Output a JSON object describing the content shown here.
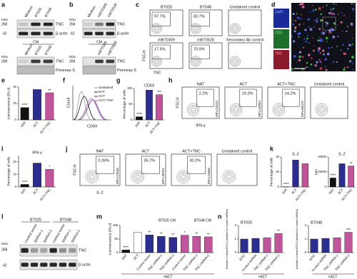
{
  "figure": {
    "panel_labels": [
      "a",
      "b",
      "c",
      "d",
      "e",
      "f",
      "g",
      "h",
      "i",
      "j",
      "k",
      "l",
      "m",
      "n"
    ],
    "a": {
      "lanes": [
        "Medium",
        "BT025",
        "BT048"
      ],
      "kda": "KDa",
      "markers": [
        "268",
        "42"
      ],
      "bands": [
        "TNC",
        "β-actin"
      ],
      "cm": "CM",
      "cm_lanes": [
        "Medium",
        "BT025",
        "BT048"
      ],
      "cm_kda": "KDa",
      "cm_marker": "268",
      "cm_bands": [
        "TNC",
        "Ponceau S"
      ]
    },
    "b": {
      "lanes": [
        "Medium",
        "mBT0309",
        "mBT0528"
      ],
      "kda": "KDa",
      "markers": [
        "268",
        "42"
      ],
      "bands": [
        "TNC",
        "β-actin"
      ],
      "cm": "CM",
      "cm_lanes": [
        "mBT0309",
        "mBT0528"
      ],
      "cm_kda": "KDa",
      "cm_marker": "268",
      "cm_bands": [
        "TNC",
        "Ponceau S"
      ]
    },
    "c": {
      "ylabel": "FSC-H",
      "xlabel": "TNC",
      "plots": [
        {
          "title": "BT025",
          "pct": "97.7%"
        },
        {
          "title": "BT048",
          "pct": "83.7%"
        },
        {
          "title": "Unstained control"
        },
        {
          "title": "mBT0309",
          "pct": "17.5%"
        },
        {
          "title": "mBT0528",
          "pct": "70.9%"
        },
        {
          "title": "Secondary Ab control"
        }
      ]
    },
    "d": {
      "channels": [
        "DAPI",
        "CD3",
        "TNC"
      ]
    },
    "f": {
      "ylabel": "Count",
      "xlabel": "CD69",
      "legend": [
        "Unstained",
        "NAT",
        "ACT",
        "ACT+TNC"
      ]
    },
    "h": {
      "ylabel": "FSC-H",
      "xlabel": "IFN-γ",
      "plots": [
        {
          "title": "NAT",
          "pct": "2.2%",
          "mfi": "MFI=12524"
        },
        {
          "title": "ACT",
          "pct": "19.2%",
          "mfi": "MFI=42853"
        },
        {
          "title": "ACT+TNC",
          "pct": "14.2%",
          "mfi": "MFI=85472"
        },
        {
          "title": "Unstained control"
        }
      ]
    },
    "j": {
      "ylabel": "FSC-H",
      "xlabel": "IL-2",
      "plots": [
        {
          "title": "NAT",
          "pct": "0.26%",
          "mfi": "MFI=13548"
        },
        {
          "title": "ACT",
          "pct": "35.7%",
          "mfi": "MFI=30761"
        },
        {
          "title": "ACT+TNC",
          "pct": "30.2%",
          "mfi": "MFI=24866"
        },
        {
          "title": "Unstained control"
        }
      ]
    },
    "l": {
      "groups": [
        "BT025",
        "BT048"
      ],
      "lanes": [
        "Control vector",
        "ShRNA-1",
        "ShRNA-2",
        "Control vector",
        "ShRNA-1",
        "ShRNA-2"
      ],
      "kda": "KDa",
      "markers": [
        "268",
        "42"
      ],
      "bands": [
        "TNC",
        "β-actin"
      ]
    },
    "m": {
      "groups": [
        "BT025 CM",
        "BT048 CM"
      ],
      "footer": "+ACT"
    },
    "n": {
      "footer": "+ACT"
    }
  },
  "chart_data": [
    {
      "type": "bar",
      "ylabel": "Luminescence (RLU)",
      "categories": [
        "NAT",
        "ACT",
        "ACT+TNC"
      ],
      "values": [
        15,
        37,
        33
      ],
      "colors": [
        "#111111",
        "#2b2d8f",
        "#c0559b"
      ],
      "annotations": [
        "****",
        null,
        "**"
      ],
      "ylim": [
        0,
        40
      ],
      "yticks": [
        0,
        20,
        40
      ]
    },
    {
      "type": "bar",
      "title": "CD69",
      "ylabel": "Percentage of cells",
      "categories": [
        "NAT",
        "ACT",
        "ACT+TNC"
      ],
      "values": [
        10,
        95,
        80
      ],
      "colors": [
        "#111111",
        "#2b2d8f",
        "#c0559b"
      ],
      "annotations": [
        "****",
        null,
        "***"
      ],
      "ylim": [
        0,
        100
      ],
      "yticks": [
        0,
        50,
        100
      ]
    },
    {
      "type": "bar",
      "title": "IFN-γ",
      "ylabel": "Percentage of cells",
      "categories": [
        "NAT",
        "ACT",
        "ACT+TNC"
      ],
      "values": [
        2,
        19,
        14
      ],
      "colors": [
        "#111111",
        "#2b2d8f",
        "#c0559b"
      ],
      "annotations": [
        "****",
        null,
        "*"
      ],
      "ylim": [
        0,
        25
      ],
      "yticks": [
        0,
        10,
        20
      ]
    },
    {
      "type": "bar",
      "title": "IL-2",
      "ylabel": "Percentage of cells",
      "categories": [
        "NAT",
        "ACT",
        "ACT+TNC"
      ],
      "values": [
        0.3,
        36,
        31
      ],
      "colors": [
        "#111111",
        "#2b2d8f",
        "#c0559b"
      ],
      "annotations": [
        "****",
        null,
        null
      ],
      "ylim": [
        0,
        40
      ],
      "yticks": [
        0,
        20,
        40
      ]
    },
    {
      "type": "bar",
      "title": "IL-2",
      "ylabel": "MFI",
      "categories": [
        "NAT",
        "ACT",
        "ACT+TNC"
      ],
      "values": [
        12000,
        31000,
        28000
      ],
      "colors": [
        "#111111",
        "#2b2d8f",
        "#c0559b"
      ],
      "annotations": [
        "****",
        null,
        "**"
      ],
      "ylim": [
        0,
        40000
      ],
      "yticks": [
        0,
        20000,
        40000
      ]
    },
    {
      "type": "bar",
      "ylabel": "Luminescence (RLU)",
      "categories": [
        "NAT",
        "ACT",
        "Control vector",
        "TNC shRNA-1",
        "TNC shRNA-2",
        "Control vector",
        "TNC shRNA-1",
        "TNC shRNA-2"
      ],
      "values": [
        10,
        75,
        65,
        60,
        56,
        64,
        60,
        58
      ],
      "colors": [
        "#111111",
        "#ffffff",
        "#2b2d8f",
        "#2b2d8f",
        "#2b2d8f",
        "#c0559b",
        "#c0559b",
        "#c0559b"
      ],
      "annotations": [
        "****",
        null,
        "**",
        "**",
        "**",
        "*",
        "**",
        "**"
      ],
      "ylim": [
        0,
        100
      ],
      "yticks": [
        0,
        50,
        100
      ]
    },
    {
      "type": "bar",
      "title": "BT025",
      "ylabel": "Number of dead BTICs (relative to control shRNA)",
      "categories": [
        "BTIC",
        "Control shRNA",
        "TNC shRNA-1",
        "TNC shRNA-2"
      ],
      "values": [
        1.0,
        1.05,
        1.1,
        1.4
      ],
      "colors": [
        "#2b2d8f",
        "#2b2d8f",
        "#c0559b",
        "#c0559b"
      ],
      "annotations": [
        null,
        null,
        null,
        "**"
      ],
      "ylim": [
        0,
        2
      ],
      "yticks": [
        0,
        1,
        2
      ]
    },
    {
      "type": "bar",
      "title": "BT048",
      "ylabel": "Number of dead BTICs (relative to control shRNA)",
      "categories": [
        "BTIC",
        "Control shRNA",
        "TNC shRNA-1",
        "TNC shRNA-2"
      ],
      "values": [
        1.0,
        1.05,
        1.1,
        1.5
      ],
      "colors": [
        "#2b2d8f",
        "#2b2d8f",
        "#c0559b",
        "#c0559b"
      ],
      "annotations": [
        null,
        null,
        null,
        "***"
      ],
      "ylim": [
        0,
        2
      ],
      "yticks": [
        0,
        1,
        2
      ]
    }
  ]
}
